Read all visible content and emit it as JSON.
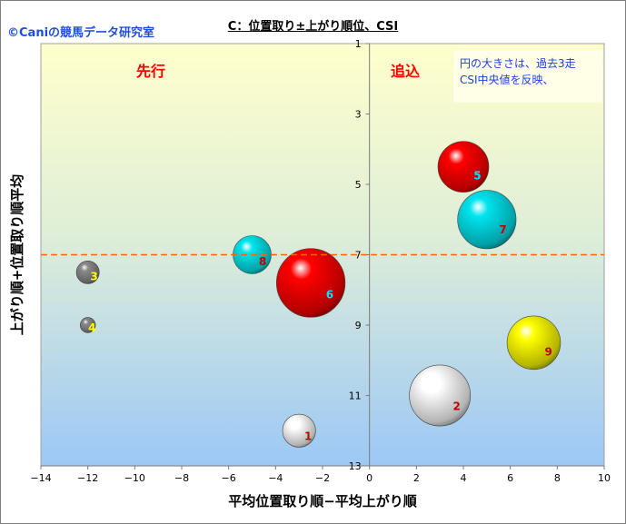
{
  "copyright": "©Caniの競馬データ研究室",
  "chart_data": {
    "type": "scatter",
    "title": "C：位置取り±上がり順位、CSI",
    "xlabel": "平均位置取り順−平均上がり順",
    "ylabel": "上がり順+位置取り順平均",
    "xlim": [
      -14,
      10
    ],
    "ylim": [
      13,
      1
    ],
    "y_reversed": true,
    "xticks": [
      "−14",
      "−12",
      "−10",
      "−8",
      "−6",
      "−4",
      "−2",
      "0",
      "2",
      "4",
      "6",
      "8",
      "10"
    ],
    "xtick_values": [
      -14,
      -12,
      -10,
      -8,
      -6,
      -4,
      -2,
      0,
      2,
      4,
      6,
      8,
      10
    ],
    "yticks": [
      "1",
      "3",
      "5",
      "7",
      "9",
      "11",
      "13"
    ],
    "ytick_values": [
      1,
      3,
      5,
      7,
      9,
      11,
      13
    ],
    "reference_line_y": 7,
    "region_labels": [
      "先行",
      "追込"
    ],
    "note_lines": [
      "円の大きさは、過去3走",
      "CSI中央値を反映、"
    ],
    "points": [
      {
        "label": "1",
        "x": -3,
        "y": 12,
        "size": 1.3,
        "color": "#ffffff",
        "label_color": "#c00000"
      },
      {
        "label": "2",
        "x": 3,
        "y": 11,
        "size": 2.4,
        "color": "#ffffff",
        "label_color": "#c00000"
      },
      {
        "label": "3",
        "x": -12,
        "y": 7.5,
        "size": 0.9,
        "color": "#8a8a8a",
        "label_color": "#ffff00"
      },
      {
        "label": "4",
        "x": -12,
        "y": 9,
        "size": 0.6,
        "color": "#8a8a8a",
        "label_color": "#ffff00"
      },
      {
        "label": "5",
        "x": 4,
        "y": 4.5,
        "size": 2.0,
        "color": "#ff0000",
        "label_color": "#00e5ff"
      },
      {
        "label": "6",
        "x": -2.5,
        "y": 7.8,
        "size": 2.7,
        "color": "#ff0000",
        "label_color": "#00e5ff"
      },
      {
        "label": "7",
        "x": 5,
        "y": 6,
        "size": 2.3,
        "color": "#00e5ee",
        "label_color": "#c00000"
      },
      {
        "label": "8",
        "x": -5,
        "y": 7,
        "size": 1.5,
        "color": "#00e5ee",
        "label_color": "#c00000"
      },
      {
        "label": "9",
        "x": 7,
        "y": 9.5,
        "size": 2.1,
        "color": "#ffff00",
        "label_color": "#c00000"
      }
    ]
  }
}
